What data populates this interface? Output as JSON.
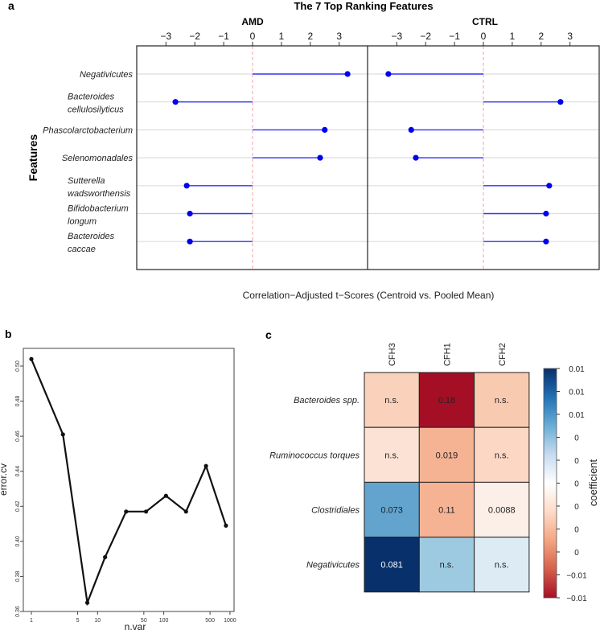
{
  "panel_labels": {
    "a": "a",
    "b": "b",
    "c": "c"
  },
  "chart_data": [
    {
      "type": "lollipop",
      "title": "The 7 Top Ranking Features",
      "ylabel": "Features",
      "xlabel": "Correlation−Adjusted t−Scores (Centroid vs. Pooled Mean)",
      "xlim": [
        -4.2,
        4.0
      ],
      "xticks": [
        -3,
        -2,
        -1,
        0,
        1,
        2,
        3
      ],
      "xtick_labels": [
        "−3",
        "−2",
        "−1",
        "0",
        "1",
        "2",
        "3"
      ],
      "categories": [
        "Negativicutes",
        "Bacteroides cellulosilyticus",
        "Phascolarctobacterium",
        "Selenomonadales",
        "Sutterella wadsworthensis",
        "Bifidobacterium longum",
        "Bacteroides caccae"
      ],
      "category_lines": [
        [
          "Negativicutes"
        ],
        [
          "Bacteroides",
          "cellulosilyticus"
        ],
        [
          "Phascolarctobacterium"
        ],
        [
          "Selenomonadales"
        ],
        [
          "Sutterella",
          "wadsworthensis"
        ],
        [
          "Bifidobacterium",
          "longum"
        ],
        [
          "Bacteroides",
          "caccae"
        ]
      ],
      "series": [
        {
          "name": "AMD",
          "values": [
            3.29,
            -2.67,
            2.5,
            2.34,
            -2.28,
            -2.17,
            -2.17
          ]
        },
        {
          "name": "CTRL",
          "values": [
            -3.29,
            2.67,
            -2.5,
            -2.34,
            2.28,
            2.17,
            2.17
          ]
        }
      ],
      "colors": {
        "point": "#0000ee",
        "line": "#3333ff",
        "zero": "#f4a0a8",
        "grid": "#dddddd"
      }
    },
    {
      "type": "line",
      "xlabel": "n.var",
      "ylabel": "error.cv",
      "xscale": "log",
      "xlim": [
        1,
        1000
      ],
      "ylim": [
        0.36,
        0.5
      ],
      "xticks": [
        1,
        5,
        10,
        50,
        100,
        500,
        1000
      ],
      "yticks": [
        0.36,
        0.38,
        0.4,
        0.42,
        0.44,
        0.46,
        0.48,
        0.5
      ],
      "ytick_labels": [
        "0.36",
        "0.38",
        "0.40",
        "0.42",
        "0.44",
        "0.46",
        "0.48",
        "0.50"
      ],
      "x": [
        1,
        3,
        7,
        13,
        27,
        54,
        108,
        217,
        435,
        870
      ],
      "y": [
        0.504,
        0.461,
        0.365,
        0.391,
        0.417,
        0.417,
        0.426,
        0.417,
        0.443,
        0.409
      ]
    },
    {
      "type": "heatmap",
      "columns": [
        "CFH3",
        "CFH1",
        "CFH2"
      ],
      "rows": [
        "Bacteroides spp.",
        "Ruminococcus torques",
        "Clostridiales",
        "Negativicutes"
      ],
      "cell_labels": [
        [
          "n.s.",
          "0.18",
          "n.s."
        ],
        [
          "n.s.",
          "0.019",
          "n.s."
        ],
        [
          "0.073",
          "0.11",
          "0.0088"
        ],
        [
          "0.081",
          "n.s.",
          "n.s."
        ]
      ],
      "cell_colors": [
        [
          "#fad1bb",
          "#a50f26",
          "#f8cbb0"
        ],
        [
          "#fce2d4",
          "#f5b394",
          "#fcd7c4"
        ],
        [
          "#62a4cd",
          "#f5b394",
          "#fcefe8"
        ],
        [
          "#08306b",
          "#9ecae1",
          "#ddebf4"
        ]
      ],
      "colorbar": {
        "title": "coefficient",
        "tick_labels": [
          "0.01",
          "0.01",
          "0.01",
          "0",
          "0",
          "0",
          "0",
          "0",
          "0",
          "−0.01",
          "−0.01"
        ],
        "gradient": [
          "#08306b",
          "#2171b5",
          "#6baed6",
          "#c6dbef",
          "#ffffff",
          "#fddbc7",
          "#f4a582",
          "#d6604d",
          "#a50f26"
        ]
      }
    }
  ]
}
